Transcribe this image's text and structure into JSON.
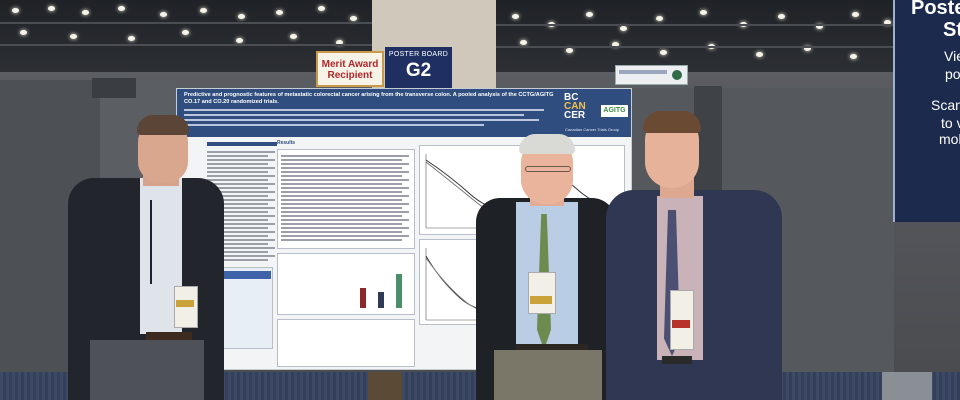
{
  "signs": {
    "merit_award": {
      "line1": "Merit Award",
      "line2": "Recipient"
    },
    "poster_board": {
      "label": "POSTER BOARD",
      "number": "G2"
    },
    "side_banner_fragments": [
      "Poster",
      "St",
      "View",
      "post",
      "Scan th",
      "to vi",
      "mobi"
    ]
  },
  "poster": {
    "title": "Predictive and prognostic features of metastatic colorectal cancer arising from the transverse colon. A pooled analysis of the CCTG/AGITG CO.17 and CO.20 randomized trials.",
    "logos": {
      "bc_cancer": [
        "BC",
        "CAN",
        "CER"
      ],
      "agitg": "AGITG",
      "partner": "Canadian Cancer Trials Group"
    },
    "sections": [
      "Results"
    ]
  },
  "colors": {
    "poster_header": "#2f4d7f",
    "board_sign": "#202f62",
    "merit_text": "#b3262b",
    "side_banner": "#1c2a4e",
    "carpet": "#3d4a66"
  }
}
